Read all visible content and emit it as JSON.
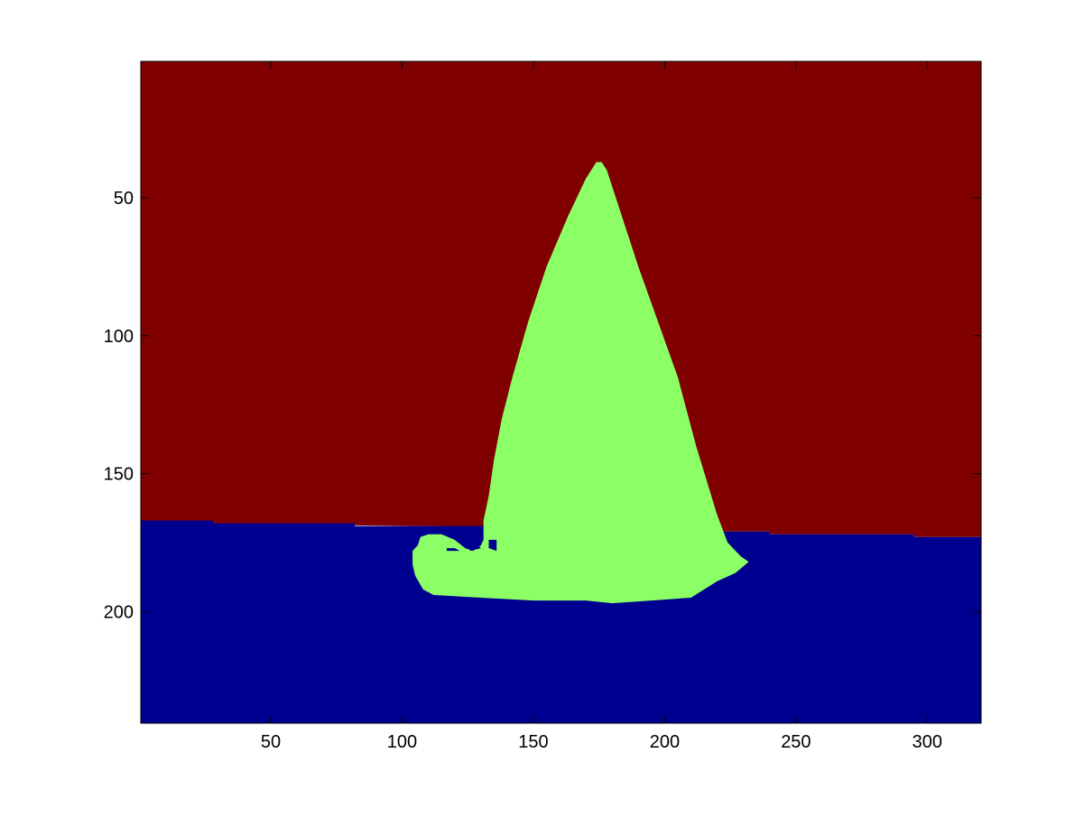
{
  "chart_data": {
    "type": "heatmap",
    "title": "",
    "xlabel": "",
    "ylabel": "",
    "xlim": [
      0.5,
      320.5
    ],
    "ylim": [
      240.5,
      0.5
    ],
    "y_reversed": true,
    "grid": false,
    "colormap": "jet",
    "xticks": [
      50,
      100,
      150,
      200,
      250,
      300
    ],
    "yticks": [
      50,
      100,
      150,
      200
    ],
    "regions": [
      {
        "label": 3,
        "color": "#800000",
        "name": "",
        "polygon": [
          [
            0.5,
            0.5
          ],
          [
            320.5,
            0.5
          ],
          [
            320.5,
            173
          ],
          [
            295,
            173
          ],
          [
            295,
            172
          ],
          [
            240,
            172
          ],
          [
            240,
            171
          ],
          [
            222,
            171
          ],
          [
            222,
            170
          ],
          [
            0.5,
            168
          ]
        ]
      },
      {
        "label": 1,
        "color": "#000090",
        "name": "",
        "polygon": [
          [
            0.5,
            167
          ],
          [
            28,
            167
          ],
          [
            28,
            168
          ],
          [
            82,
            168
          ],
          [
            82,
            169
          ],
          [
            131,
            169
          ],
          [
            222,
            171
          ],
          [
            240,
            171
          ],
          [
            240,
            172
          ],
          [
            295,
            172
          ],
          [
            295,
            173
          ],
          [
            320.5,
            173
          ],
          [
            320.5,
            240.5
          ],
          [
            0.5,
            240.5
          ]
        ]
      },
      {
        "label": 2,
        "color": "#8cff66",
        "name": "",
        "polygon": [
          [
            174,
            37
          ],
          [
            176,
            37
          ],
          [
            178,
            40
          ],
          [
            190,
            75
          ],
          [
            205,
            115
          ],
          [
            212,
            140
          ],
          [
            220,
            165
          ],
          [
            224,
            175
          ],
          [
            229,
            180
          ],
          [
            232,
            182
          ],
          [
            227,
            186
          ],
          [
            220,
            189
          ],
          [
            215,
            192
          ],
          [
            210,
            195
          ],
          [
            195,
            196
          ],
          [
            180,
            197
          ],
          [
            170,
            196
          ],
          [
            150,
            196
          ],
          [
            130,
            195
          ],
          [
            112,
            194
          ],
          [
            108,
            192
          ],
          [
            105,
            187
          ],
          [
            104,
            183
          ],
          [
            104,
            178
          ],
          [
            106,
            176
          ],
          [
            107,
            173
          ],
          [
            110,
            172
          ],
          [
            115,
            172
          ],
          [
            120,
            174
          ],
          [
            124,
            177
          ],
          [
            127,
            178
          ],
          [
            130,
            176
          ],
          [
            131,
            174
          ],
          [
            131,
            167
          ],
          [
            133,
            158
          ],
          [
            135,
            145
          ],
          [
            138,
            130
          ],
          [
            142,
            115
          ],
          [
            148,
            95
          ],
          [
            155,
            75
          ],
          [
            163,
            57
          ],
          [
            170,
            43
          ]
        ]
      },
      {
        "label": 1,
        "color": "#000090",
        "name": "",
        "polygon": [
          [
            117,
            177
          ],
          [
            120,
            177
          ],
          [
            122,
            178
          ],
          [
            117,
            178
          ]
        ]
      },
      {
        "label": 1,
        "color": "#000090",
        "name": "",
        "polygon": [
          [
            125,
            176
          ],
          [
            129,
            176
          ],
          [
            130,
            177
          ],
          [
            126,
            178
          ]
        ]
      },
      {
        "label": 1,
        "color": "#000090",
        "name": "",
        "polygon": [
          [
            133,
            174
          ],
          [
            136,
            174
          ],
          [
            136,
            178
          ],
          [
            133,
            177
          ]
        ]
      }
    ]
  }
}
